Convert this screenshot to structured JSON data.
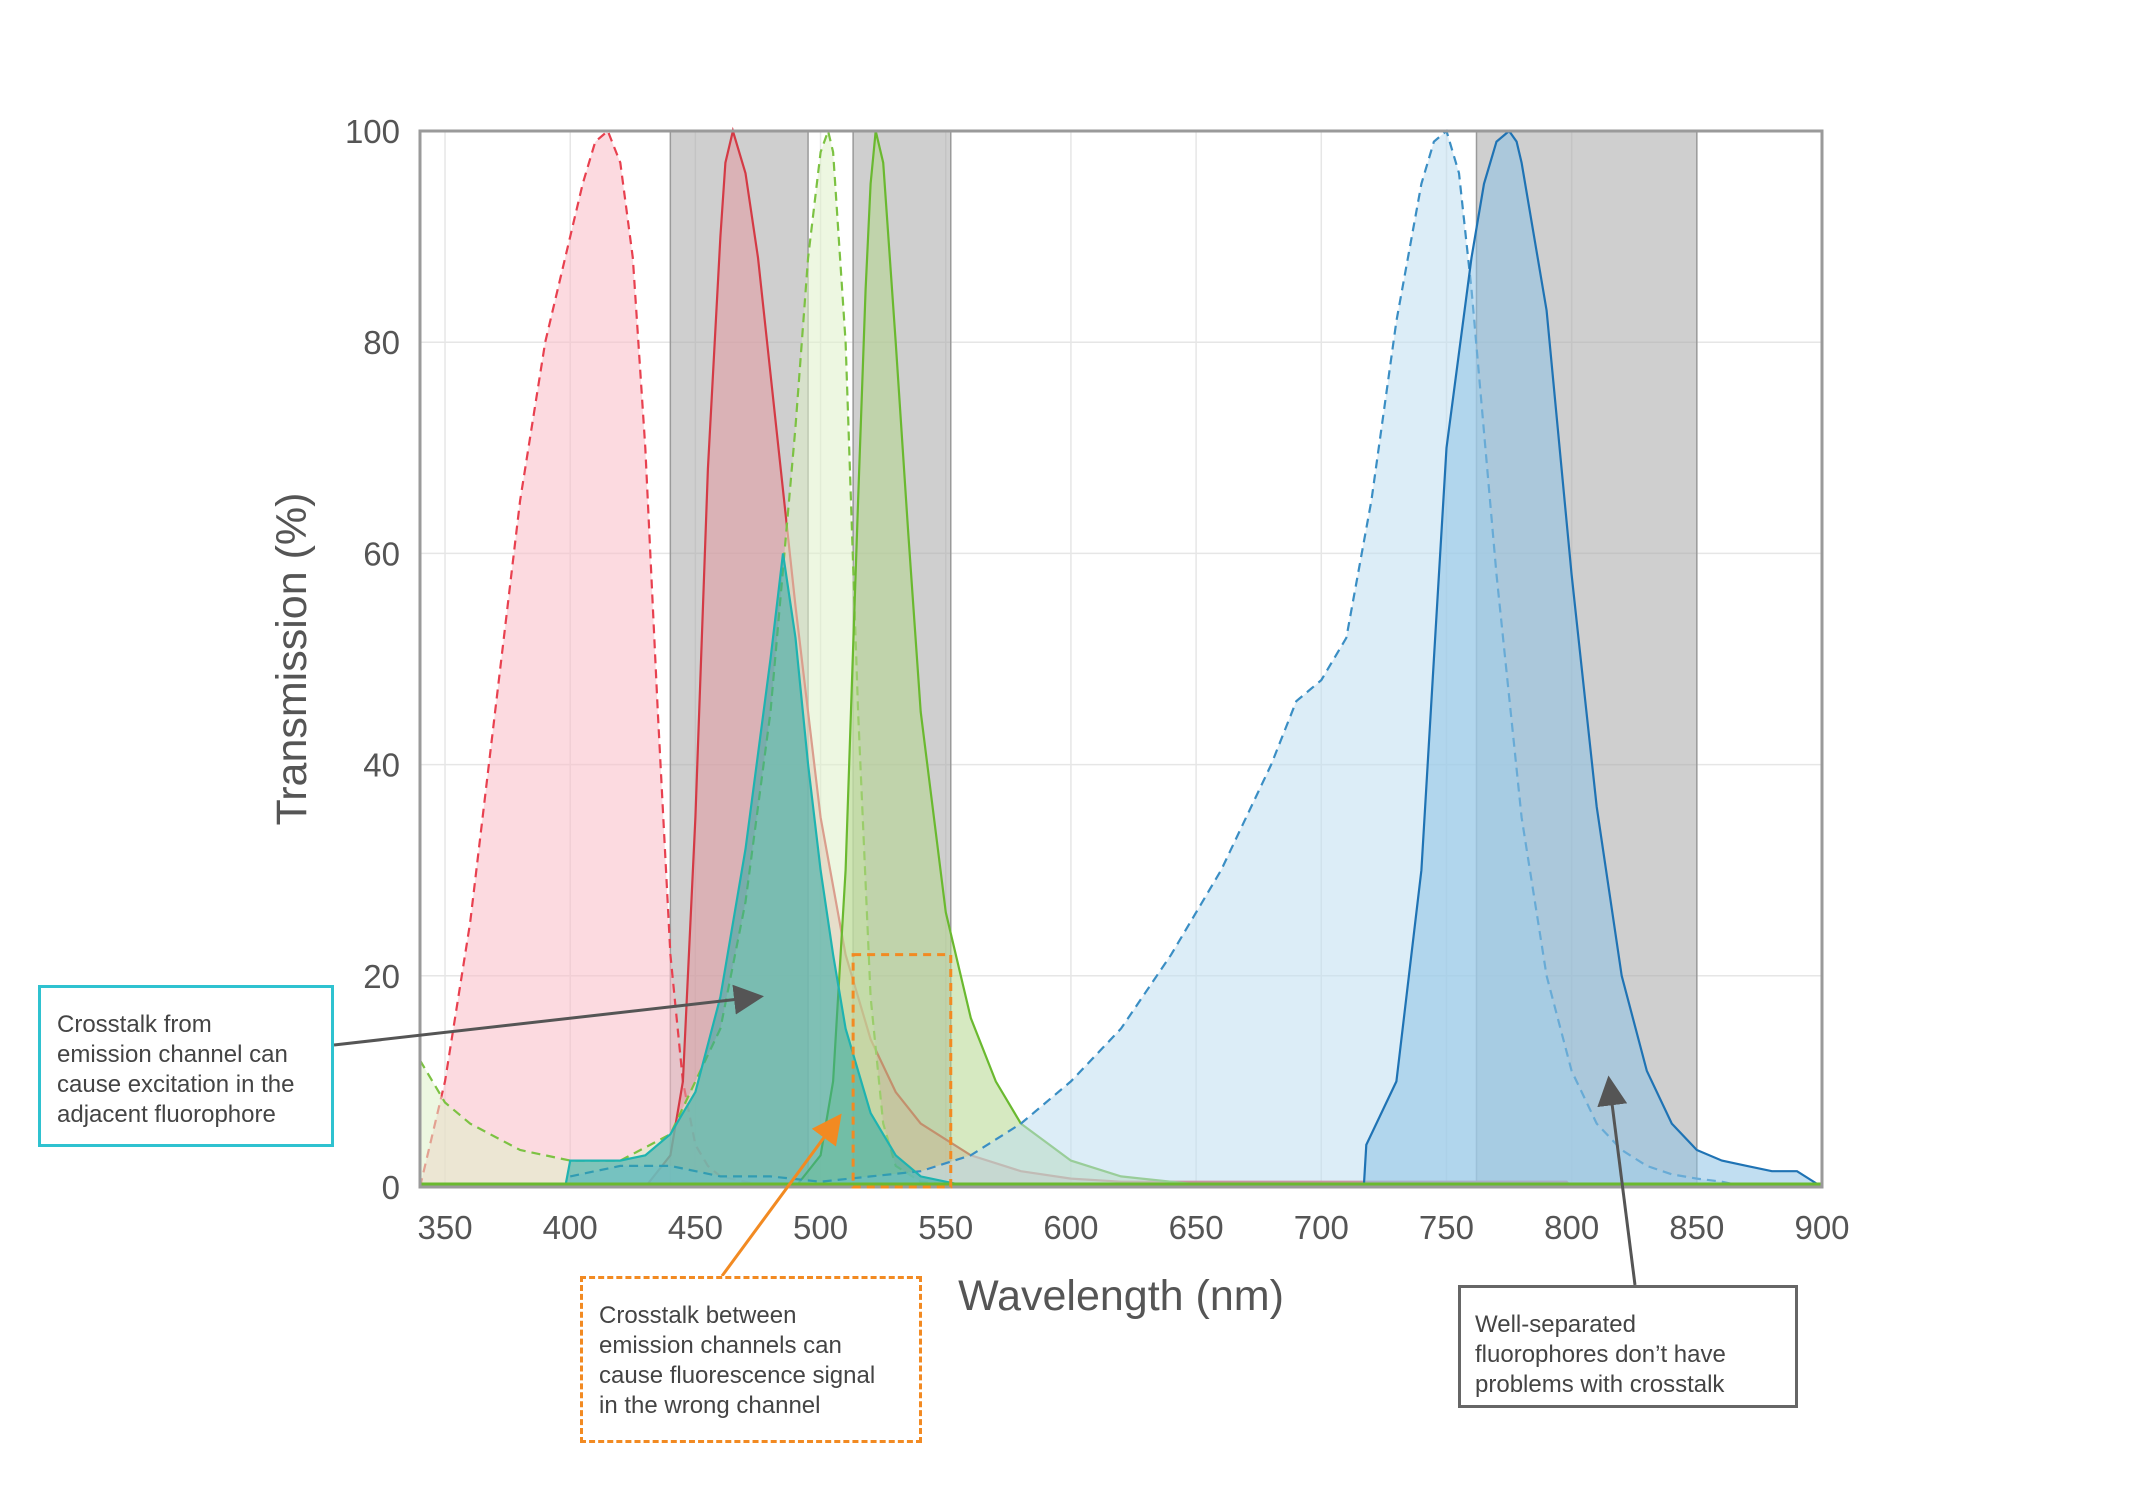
{
  "chart_data": {
    "type": "area",
    "xlabel": "Wavelength (nm)",
    "ylabel": "Transmission (%)",
    "xlim": [
      340,
      900
    ],
    "ylim": [
      0,
      100
    ],
    "xticks": [
      350,
      400,
      450,
      500,
      550,
      600,
      650,
      700,
      750,
      800,
      850,
      900
    ],
    "yticks": [
      0,
      20,
      40,
      60,
      80,
      100
    ],
    "grid": true,
    "filter_bands": [
      {
        "from": 440,
        "to": 495
      },
      {
        "from": 513,
        "to": 552
      },
      {
        "from": 762,
        "to": 850
      }
    ],
    "series": [
      {
        "kind": "excitation",
        "style": "dashed",
        "color": "#e8404f",
        "fill": "#f9bcc6",
        "x": [
          340,
          350,
          360,
          370,
          380,
          390,
          400,
          405,
          410,
          415,
          420,
          425,
          430,
          435,
          440,
          445,
          450,
          455,
          460,
          470,
          480
        ],
        "y": [
          0,
          10,
          25,
          45,
          65,
          80,
          90,
          95,
          99,
          100,
          97,
          88,
          70,
          45,
          22,
          10,
          4,
          2,
          1,
          0.5,
          0
        ]
      },
      {
        "kind": "emission",
        "style": "solid",
        "color": "#d43a45",
        "fill": "#e49aa3",
        "x": [
          430,
          440,
          445,
          450,
          455,
          460,
          462,
          465,
          470,
          475,
          480,
          490,
          500,
          510,
          520,
          530,
          540,
          560,
          580,
          600,
          620,
          700,
          798,
          800
        ],
        "y": [
          0,
          3,
          10,
          35,
          68,
          90,
          97,
          100,
          96,
          88,
          77,
          55,
          35,
          22,
          14,
          9,
          6,
          3,
          1.5,
          0.8,
          0.5,
          0.5,
          0.5,
          0
        ]
      },
      {
        "kind": "excitation",
        "style": "dashed",
        "color": "#7cc242",
        "fill": "#dff0c8",
        "x": [
          340,
          345,
          350,
          360,
          380,
          400,
          420,
          440,
          460,
          470,
          480,
          490,
          495,
          500,
          503,
          505,
          510,
          515,
          520,
          525,
          530,
          540,
          560
        ],
        "y": [
          12,
          10,
          8,
          6,
          3.5,
          2.5,
          2.5,
          5,
          15,
          27,
          45,
          72,
          88,
          98,
          100,
          98,
          80,
          45,
          18,
          6,
          2,
          0.5,
          0
        ]
      },
      {
        "kind": "emission",
        "style": "solid",
        "color": "#6ab92f",
        "fill": "#b5d78e",
        "x": [
          490,
          500,
          505,
          510,
          515,
          518,
          520,
          522,
          525,
          530,
          535,
          540,
          550,
          560,
          570,
          580,
          600,
          620,
          640,
          660
        ],
        "y": [
          0,
          3,
          10,
          30,
          65,
          85,
          95,
          100,
          97,
          80,
          62,
          45,
          26,
          16,
          10,
          6,
          2.5,
          1,
          0.5,
          0
        ]
      },
      {
        "kind": "excitation",
        "style": "dashed",
        "color": "#3a8ec4",
        "fill": "#bfdff1",
        "x": [
          400,
          420,
          440,
          460,
          480,
          500,
          520,
          540,
          560,
          580,
          600,
          620,
          640,
          660,
          680,
          690,
          700,
          710,
          720,
          730,
          740,
          745,
          750,
          755,
          760,
          770,
          780,
          790,
          800,
          810,
          820,
          830,
          840,
          850,
          860,
          870
        ],
        "y": [
          1,
          2,
          2,
          1,
          1,
          0.5,
          1,
          1.5,
          3,
          6,
          10,
          15,
          22,
          30,
          40,
          46,
          48,
          52,
          65,
          82,
          95,
          99,
          100,
          96,
          85,
          58,
          35,
          20,
          11,
          6,
          3.5,
          2,
          1.2,
          0.8,
          0.5,
          0
        ]
      },
      {
        "kind": "emission",
        "style": "solid",
        "color": "#1f73b4",
        "fill": "#8ec3e6",
        "x": [
          717,
          718,
          730,
          740,
          745,
          750,
          760,
          765,
          770,
          775,
          778,
          780,
          790,
          800,
          810,
          820,
          830,
          840,
          850,
          860,
          870,
          880,
          890,
          900
        ],
        "y": [
          0,
          4,
          10,
          30,
          50,
          70,
          88,
          95,
          99,
          100,
          99,
          97,
          83,
          58,
          36,
          20,
          11,
          6,
          3.5,
          2.5,
          2,
          1.5,
          1.5,
          0
        ]
      },
      {
        "kind": "emission",
        "style": "solid",
        "color": "#1fb3b0",
        "fill": "#2aa7a4",
        "x": [
          398,
          400,
          410,
          420,
          430,
          440,
          450,
          460,
          470,
          480,
          485,
          490,
          495,
          500,
          505,
          510,
          520,
          530,
          540,
          550,
          560
        ],
        "y": [
          0,
          2.5,
          2.5,
          2.5,
          3,
          5,
          9,
          18,
          32,
          50,
          60,
          52,
          40,
          30,
          22,
          15,
          7,
          3,
          1,
          0.5,
          0
        ]
      }
    ],
    "annotations": [
      {
        "text": "Crosstalk from\nemission channel can\ncause excitation in the\nadjacent fluorophore",
        "target": [
          475,
          18
        ]
      },
      {
        "text": "Crosstalk between\nemission channels can\ncause fluorescence signal\nin the wrong channel",
        "target": [
          507,
          6.5
        ]
      },
      {
        "text": "Well-separated\nfluorophores don’t have\nproblems with crosstalk",
        "target": [
          815,
          10
        ]
      }
    ]
  }
}
